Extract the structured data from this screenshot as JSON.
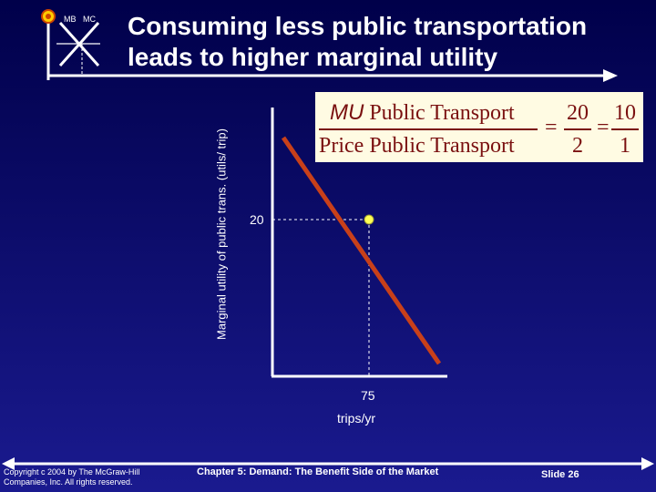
{
  "logo": {
    "left_text": "MB",
    "right_text": "MC"
  },
  "slide": {
    "title_line1": "Consuming less public transportation",
    "title_line2": "leads to higher marginal utility"
  },
  "equation": {
    "numerator_var": "MU",
    "numerator_text": "Public Transport",
    "denominator_text": "Price Public Transport",
    "equals": "=",
    "frac1_num": "20",
    "frac1_den": "2",
    "frac2_num": "10",
    "frac2_den": "1"
  },
  "chart_data": {
    "type": "line",
    "ylabel": "Marginal utility of public trans. (utils/ trip)",
    "xlabel": "trips/yr",
    "x_ticks": [
      "75"
    ],
    "y_ticks": [
      "20"
    ],
    "highlighted_point": {
      "x": 75,
      "y": 20
    },
    "line_color": "#c8401a",
    "point_color": "#ffff55"
  },
  "footer": {
    "copyright_line1": "Copyright c 2004 by The McGraw-Hill",
    "copyright_line2": "Companies, Inc. All rights reserved.",
    "chapter": "Chapter 5: Demand: The Benefit Side of the Market",
    "slide_number": "Slide 26"
  }
}
